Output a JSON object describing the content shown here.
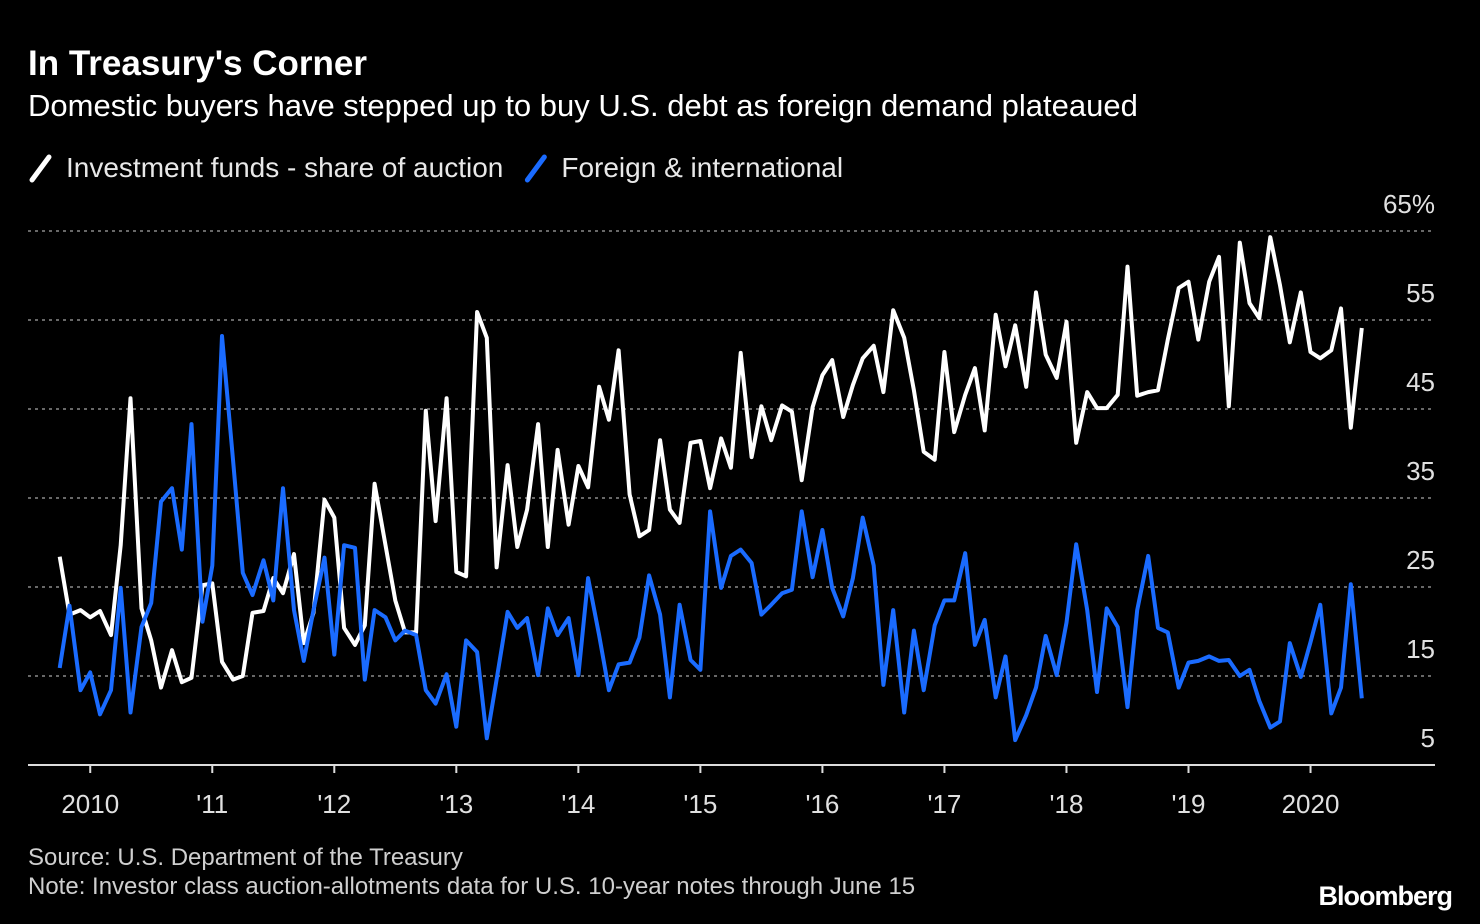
{
  "chart_data": {
    "type": "line",
    "title": "In Treasury's Corner",
    "subtitle": "Domestic buyers have stepped up to buy U.S. debt as foreign demand plateaued",
    "source": "Source: U.S. Department of the Treasury",
    "note": "Note: Investor class auction-allotments data for U.S. 10-year notes through June 15",
    "logo": "Bloomberg",
    "x": [
      2009.75,
      2009.83,
      2009.92,
      2010,
      2010.08,
      2010.17,
      2010.25,
      2010.33,
      2010.42,
      2010.5,
      2010.58,
      2010.67,
      2010.75,
      2010.83,
      2010.92,
      2011,
      2011.08,
      2011.17,
      2011.25,
      2011.33,
      2011.42,
      2011.5,
      2011.58,
      2011.67,
      2011.75,
      2011.83,
      2011.92,
      2012,
      2012.08,
      2012.17,
      2012.25,
      2012.33,
      2012.42,
      2012.5,
      2012.58,
      2012.67,
      2012.75,
      2012.83,
      2012.92,
      2013,
      2013.08,
      2013.17,
      2013.25,
      2013.33,
      2013.42,
      2013.5,
      2013.58,
      2013.67,
      2013.75,
      2013.83,
      2013.92,
      2014,
      2014.08,
      2014.17,
      2014.25,
      2014.33,
      2014.42,
      2014.5,
      2014.58,
      2014.67,
      2014.75,
      2014.83,
      2014.92,
      2015,
      2015.08,
      2015.17,
      2015.25,
      2015.33,
      2015.42,
      2015.5,
      2015.58,
      2015.67,
      2015.75,
      2015.83,
      2015.92,
      2016,
      2016.08,
      2016.17,
      2016.25,
      2016.33,
      2016.42,
      2016.5,
      2016.58,
      2016.67,
      2016.75,
      2016.83,
      2016.92,
      2017,
      2017.08,
      2017.17,
      2017.25,
      2017.33,
      2017.42,
      2017.5,
      2017.58,
      2017.67,
      2017.75,
      2017.83,
      2017.92,
      2018,
      2018.08,
      2018.17,
      2018.25,
      2018.33,
      2018.42,
      2018.5,
      2018.58,
      2018.67,
      2018.75,
      2018.83,
      2018.92,
      2019,
      2019.08,
      2019.17,
      2019.25,
      2019.33,
      2019.42,
      2019.5,
      2019.58,
      2019.67,
      2019.75,
      2019.83,
      2019.92,
      2020,
      2020.08,
      2020.17,
      2020.25,
      2020.33,
      2020.42
    ],
    "series": [
      {
        "name": "Investment funds - share of auction",
        "color": "#ffffff",
        "values": [
          28.4,
          21.9,
          22.4,
          21.6,
          22.3,
          19.6,
          29.7,
          46.2,
          22.6,
          19.0,
          13.7,
          17.9,
          14.3,
          14.8,
          25.2,
          25.4,
          16.6,
          14.6,
          15.0,
          22.1,
          22.3,
          26.0,
          24.3,
          28.7,
          18.7,
          22.1,
          34.8,
          32.8,
          20.4,
          18.5,
          20.7,
          36.6,
          29.7,
          23.5,
          19.9,
          19.9,
          44.8,
          32.4,
          46.2,
          26.7,
          26.2,
          55.9,
          53.0,
          27.2,
          38.7,
          29.5,
          33.7,
          43.3,
          29.5,
          40.4,
          32.0,
          38.6,
          36.2,
          47.5,
          43.8,
          51.6,
          35.4,
          30.7,
          31.4,
          41.5,
          33.7,
          32.2,
          41.2,
          41.4,
          36.1,
          41.7,
          38.4,
          51.3,
          39.6,
          45.3,
          41.5,
          45.4,
          44.7,
          37.0,
          45.2,
          48.8,
          50.5,
          44.1,
          47.7,
          50.7,
          52.1,
          46.9,
          56.1,
          53.0,
          47.1,
          40.2,
          39.3,
          51.4,
          42.4,
          46.6,
          49.6,
          42.6,
          55.6,
          49.8,
          54.4,
          47.5,
          58.1,
          51.1,
          48.5,
          54.8,
          41.2,
          46.9,
          45.1,
          45.1,
          46.6,
          61.0,
          46.5,
          46.9,
          47.1,
          52.8,
          58.6,
          59.3,
          52.8,
          59.3,
          62.1,
          45.3,
          63.7,
          56.9,
          55.2,
          64.3,
          58.9,
          52.5,
          58.1,
          51.4,
          50.7,
          51.6,
          56.3,
          42.9,
          54.1
        ]
      },
      {
        "name": "Foreign & international",
        "color": "#1a6bff",
        "values": [
          15.9,
          22.9,
          13.4,
          15.4,
          10.7,
          13.4,
          24.9,
          10.9,
          20.5,
          23.2,
          34.6,
          36.1,
          29.2,
          43.3,
          21.1,
          27.4,
          53.2,
          39.3,
          26.6,
          24.1,
          28.0,
          23.5,
          36.1,
          22.4,
          16.7,
          22.4,
          28.3,
          17.4,
          29.7,
          29.4,
          14.6,
          22.4,
          21.6,
          19.0,
          20.1,
          19.6,
          13.4,
          11.9,
          15.2,
          9.3,
          19.0,
          17.7,
          8.0,
          14.6,
          22.2,
          20.4,
          21.5,
          15.1,
          22.6,
          19.6,
          21.5,
          15.1,
          26.0,
          19.6,
          13.4,
          16.3,
          16.5,
          19.3,
          26.3,
          21.9,
          12.6,
          23.0,
          16.8,
          15.7,
          33.5,
          24.9,
          28.5,
          29.2,
          27.7,
          21.9,
          23.0,
          24.3,
          24.7,
          33.5,
          26.1,
          31.4,
          24.9,
          21.7,
          26.0,
          32.8,
          27.4,
          14.0,
          22.4,
          10.9,
          20.1,
          13.4,
          20.7,
          23.5,
          23.5,
          28.8,
          18.5,
          21.3,
          12.6,
          17.2,
          7.8,
          10.6,
          13.7,
          19.5,
          15.1,
          21.0,
          29.8,
          22.4,
          13.2,
          22.6,
          20.5,
          11.5,
          22.4,
          28.5,
          20.4,
          19.9,
          13.7,
          16.5,
          16.7,
          17.2,
          16.7,
          16.8,
          15.0,
          15.7,
          12.2,
          9.2,
          9.9,
          18.7,
          14.9,
          18.8,
          23.0,
          10.8,
          13.7,
          25.3,
          12.5
        ]
      }
    ],
    "xlim": [
      2009.49,
      2021.02
    ],
    "xticks": [
      2010,
      {
        "value": 2011,
        "label": "'11"
      },
      {
        "value": 2012,
        "label": "'12"
      },
      {
        "value": 2013,
        "label": "'13"
      },
      {
        "value": 2014,
        "label": "'14"
      },
      {
        "value": 2015,
        "label": "'15"
      },
      {
        "value": 2016,
        "label": "'16"
      },
      {
        "value": 2017,
        "label": "'17"
      },
      {
        "value": 2018,
        "label": "'18"
      },
      {
        "value": 2019,
        "label": "'19"
      },
      2020
    ],
    "ylim": [
      5,
      65
    ],
    "yticks": [
      5,
      15,
      25,
      35,
      45,
      55,
      {
        "value": 65,
        "label": "65%"
      }
    ],
    "grid": true
  }
}
